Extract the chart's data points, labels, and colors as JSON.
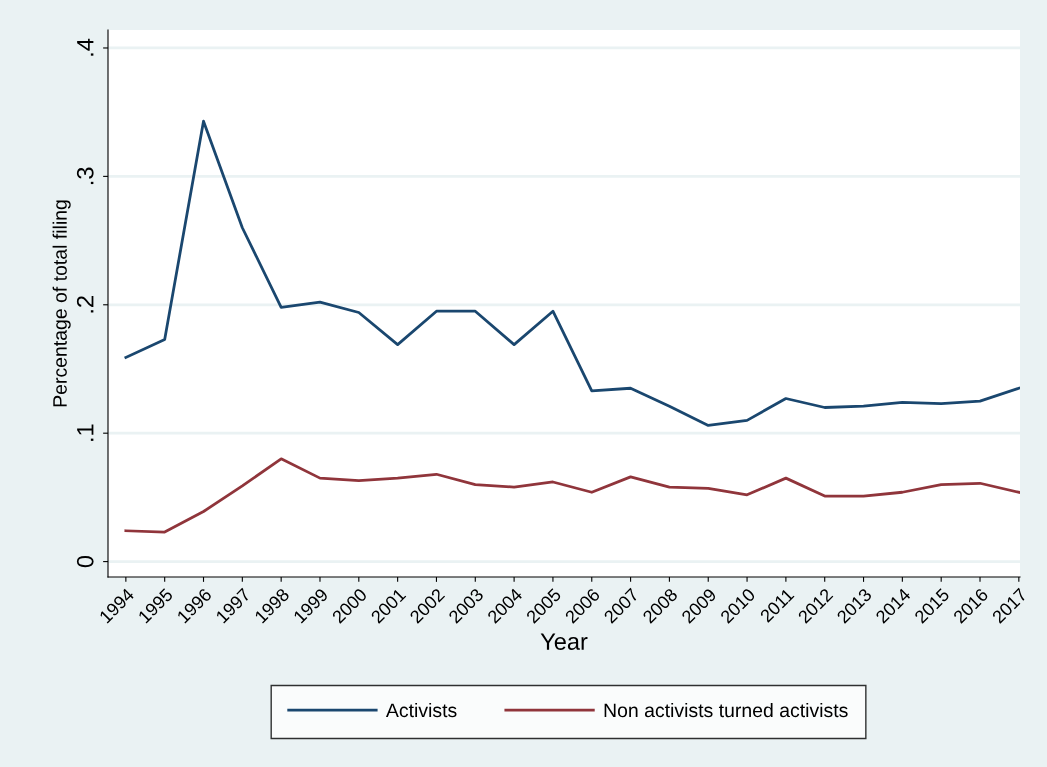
{
  "chart_data": {
    "type": "line",
    "xlabel": "Year",
    "ylabel": "Percentage of total filing",
    "categories": [
      "1994",
      "1995",
      "1996",
      "1997",
      "1998",
      "1999",
      "2000",
      "2001",
      "2002",
      "2003",
      "2004",
      "2005",
      "2006",
      "2007",
      "2008",
      "2009",
      "2010",
      "2011",
      "2012",
      "2013",
      "2014",
      "2015",
      "2016",
      "2017"
    ],
    "series": [
      {
        "name": "Activists",
        "color": "#1a476f",
        "values": [
          0.159,
          0.173,
          0.343,
          0.26,
          0.198,
          0.202,
          0.194,
          0.169,
          0.195,
          0.195,
          0.169,
          0.195,
          0.133,
          0.135,
          0.121,
          0.106,
          0.11,
          0.127,
          0.12,
          0.121,
          0.124,
          0.123,
          0.125,
          0.135
        ]
      },
      {
        "name": "Non activists turned activists",
        "color": "#90353b",
        "values": [
          0.024,
          0.023,
          0.039,
          0.059,
          0.08,
          0.065,
          0.063,
          0.065,
          0.068,
          0.06,
          0.058,
          0.062,
          0.054,
          0.066,
          0.058,
          0.057,
          0.052,
          0.065,
          0.051,
          0.051,
          0.054,
          0.06,
          0.061,
          0.054
        ]
      }
    ],
    "ylim": [
      -0.012,
      0.414
    ],
    "yticks": [
      {
        "value": 0,
        "label": "0"
      },
      {
        "value": 0.1,
        "label": ".1"
      },
      {
        "value": 0.2,
        "label": ".2"
      },
      {
        "value": 0.3,
        "label": ".3"
      },
      {
        "value": 0.4,
        "label": ".4"
      }
    ],
    "grid": "y",
    "legend": "bottom",
    "marker": "none",
    "line_style": "solid"
  }
}
